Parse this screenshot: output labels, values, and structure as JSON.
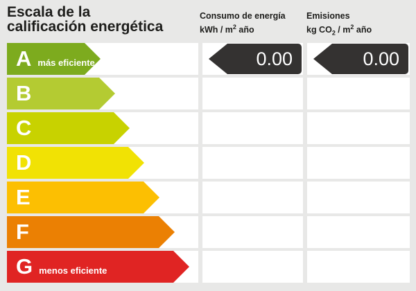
{
  "title": {
    "line1": "Escala de la",
    "line2": "calificación energética"
  },
  "columns": {
    "consumo": {
      "title": "Consumo de energía",
      "unit": {
        "base1": "kWh / m",
        "sup1": "2",
        "base2": " año"
      }
    },
    "emisiones": {
      "title": "Emisiones",
      "unit": {
        "base1": "kg CO",
        "sub1": "2",
        "base2": " / m",
        "sup2": "2",
        "base3": " año"
      }
    }
  },
  "colors": {
    "background": "#e8e8e7",
    "cell": "#ffffff",
    "value_arrow": "#343231",
    "value_text": "#ffffff",
    "letter_text": "#ffffff",
    "title_text": "#1d1d1b"
  },
  "ratings": [
    {
      "letter": "A",
      "note": "más eficiente",
      "color": "#7dab1e",
      "arrow_width": 135,
      "consumo": "0.00",
      "emisiones": "0.00"
    },
    {
      "letter": "B",
      "note": "",
      "color": "#b4cb32",
      "arrow_width": 156,
      "consumo": null,
      "emisiones": null
    },
    {
      "letter": "C",
      "note": "",
      "color": "#c8d200",
      "arrow_width": 177,
      "consumo": null,
      "emisiones": null
    },
    {
      "letter": "D",
      "note": "",
      "color": "#f1e204",
      "arrow_width": 198,
      "consumo": null,
      "emisiones": null
    },
    {
      "letter": "E",
      "note": "",
      "color": "#fcbf02",
      "arrow_width": 220,
      "consumo": null,
      "emisiones": null
    },
    {
      "letter": "F",
      "note": "",
      "color": "#eb8003",
      "arrow_width": 242,
      "consumo": null,
      "emisiones": null
    },
    {
      "letter": "G",
      "note": "menos eficiente",
      "color": "#e02423",
      "arrow_width": 263,
      "consumo": null,
      "emisiones": null
    }
  ],
  "chart_data": {
    "type": "bar",
    "title": "Escala de la calificación energética",
    "categories": [
      "A",
      "B",
      "C",
      "D",
      "E",
      "F",
      "G"
    ],
    "category_colors": [
      "#7dab1e",
      "#b4cb32",
      "#c8d200",
      "#f1e204",
      "#fcbf02",
      "#eb8003",
      "#e02423"
    ],
    "series": [
      {
        "name": "Consumo de energía kWh/m² año",
        "values": [
          0.0,
          null,
          null,
          null,
          null,
          null,
          null
        ]
      },
      {
        "name": "Emisiones kg CO₂/m² año",
        "values": [
          0.0,
          null,
          null,
          null,
          null,
          null,
          null
        ]
      }
    ],
    "annotations": [
      "A = más eficiente",
      "G = menos eficiente"
    ],
    "orientation": "horizontal",
    "legend_position": "top",
    "grid": false
  }
}
